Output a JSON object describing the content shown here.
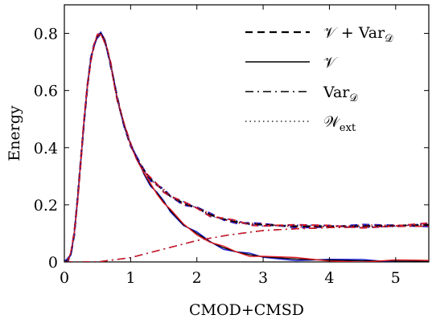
{
  "chart_data": {
    "type": "line",
    "title": "",
    "xlabel": "CMOD+CMSD",
    "ylabel": "Energy",
    "xlim": [
      0,
      5.5
    ],
    "ylim": [
      0,
      0.9
    ],
    "xticks": [
      "0",
      "1",
      "2",
      "3",
      "4",
      "5"
    ],
    "yticks": [
      "0",
      "0.2",
      "0.4",
      "0.6",
      "0.8"
    ],
    "grid": false,
    "legend_position": "top-right",
    "legend": [
      {
        "label_main": "𝒱 + Var",
        "label_sub": "𝒟",
        "style": "dashed"
      },
      {
        "label_main": "𝒱",
        "label_sub": "",
        "style": "solid"
      },
      {
        "label_main": "Var",
        "label_sub": "𝒟",
        "style": "dashdot"
      },
      {
        "label_main": "𝒲",
        "label_sub": "ext",
        "style": "dotted"
      }
    ],
    "colors": {
      "black": "#000000",
      "blue": "#1f1fd6",
      "red": "#e01b24"
    },
    "series": [
      {
        "name": "𝒱 + Var𝒟",
        "style": "dashed",
        "x": [
          0,
          0.05,
          0.1,
          0.15,
          0.2,
          0.25,
          0.3,
          0.35,
          0.4,
          0.45,
          0.5,
          0.55,
          0.6,
          0.65,
          0.7,
          0.75,
          0.8,
          0.9,
          1.0,
          1.1,
          1.2,
          1.3,
          1.4,
          1.5,
          1.6,
          1.8,
          2.0,
          2.2,
          2.4,
          2.6,
          2.8,
          3.0,
          3.5,
          4.0,
          4.5,
          5.0,
          5.5
        ],
        "y": [
          0,
          0.005,
          0.03,
          0.1,
          0.22,
          0.36,
          0.5,
          0.62,
          0.71,
          0.76,
          0.79,
          0.8,
          0.78,
          0.74,
          0.69,
          0.63,
          0.57,
          0.48,
          0.41,
          0.36,
          0.32,
          0.29,
          0.27,
          0.25,
          0.23,
          0.205,
          0.19,
          0.165,
          0.15,
          0.14,
          0.133,
          0.13,
          0.125,
          0.125,
          0.125,
          0.127,
          0.13
        ]
      },
      {
        "name": "𝒱",
        "style": "solid",
        "x": [
          0,
          0.05,
          0.1,
          0.15,
          0.2,
          0.25,
          0.3,
          0.35,
          0.4,
          0.45,
          0.5,
          0.55,
          0.6,
          0.65,
          0.7,
          0.75,
          0.8,
          0.9,
          1.0,
          1.1,
          1.2,
          1.3,
          1.4,
          1.5,
          1.6,
          1.8,
          2.0,
          2.2,
          2.4,
          2.6,
          2.8,
          3.0,
          3.5,
          4.0,
          4.5,
          5.0,
          5.5
        ],
        "y": [
          0,
          0.005,
          0.03,
          0.1,
          0.22,
          0.36,
          0.5,
          0.62,
          0.71,
          0.76,
          0.79,
          0.8,
          0.78,
          0.74,
          0.69,
          0.63,
          0.57,
          0.48,
          0.41,
          0.36,
          0.31,
          0.27,
          0.24,
          0.21,
          0.18,
          0.13,
          0.1,
          0.07,
          0.05,
          0.035,
          0.025,
          0.018,
          0.01,
          0.006,
          0.004,
          0.003,
          0.002
        ]
      },
      {
        "name": "Var𝒟",
        "style": "dashdot",
        "x": [
          0,
          0.5,
          1.0,
          1.5,
          2.0,
          2.5,
          3.0,
          3.5,
          4.0,
          4.5,
          5.0,
          5.5
        ],
        "y": [
          0,
          0.0,
          0.015,
          0.045,
          0.075,
          0.095,
          0.11,
          0.116,
          0.12,
          0.122,
          0.124,
          0.125
        ]
      },
      {
        "name": "𝒲ext",
        "style": "dotted",
        "x": [
          0,
          0.05,
          0.1,
          0.15,
          0.2,
          0.25,
          0.3,
          0.35,
          0.4,
          0.45,
          0.5,
          0.55,
          0.6,
          0.65,
          0.7,
          0.75,
          0.8,
          0.9,
          1.0,
          1.1,
          1.2,
          1.3,
          1.4,
          1.5,
          1.6,
          1.8,
          2.0,
          2.2,
          2.4,
          2.6,
          2.8,
          3.0,
          3.5,
          4.0,
          4.5,
          5.0,
          5.5
        ],
        "y": [
          0,
          0.005,
          0.03,
          0.1,
          0.22,
          0.36,
          0.5,
          0.62,
          0.71,
          0.76,
          0.79,
          0.8,
          0.78,
          0.74,
          0.69,
          0.63,
          0.57,
          0.48,
          0.41,
          0.36,
          0.32,
          0.29,
          0.27,
          0.25,
          0.23,
          0.205,
          0.19,
          0.165,
          0.15,
          0.14,
          0.133,
          0.13,
          0.125,
          0.125,
          0.125,
          0.127,
          0.13
        ]
      }
    ]
  }
}
